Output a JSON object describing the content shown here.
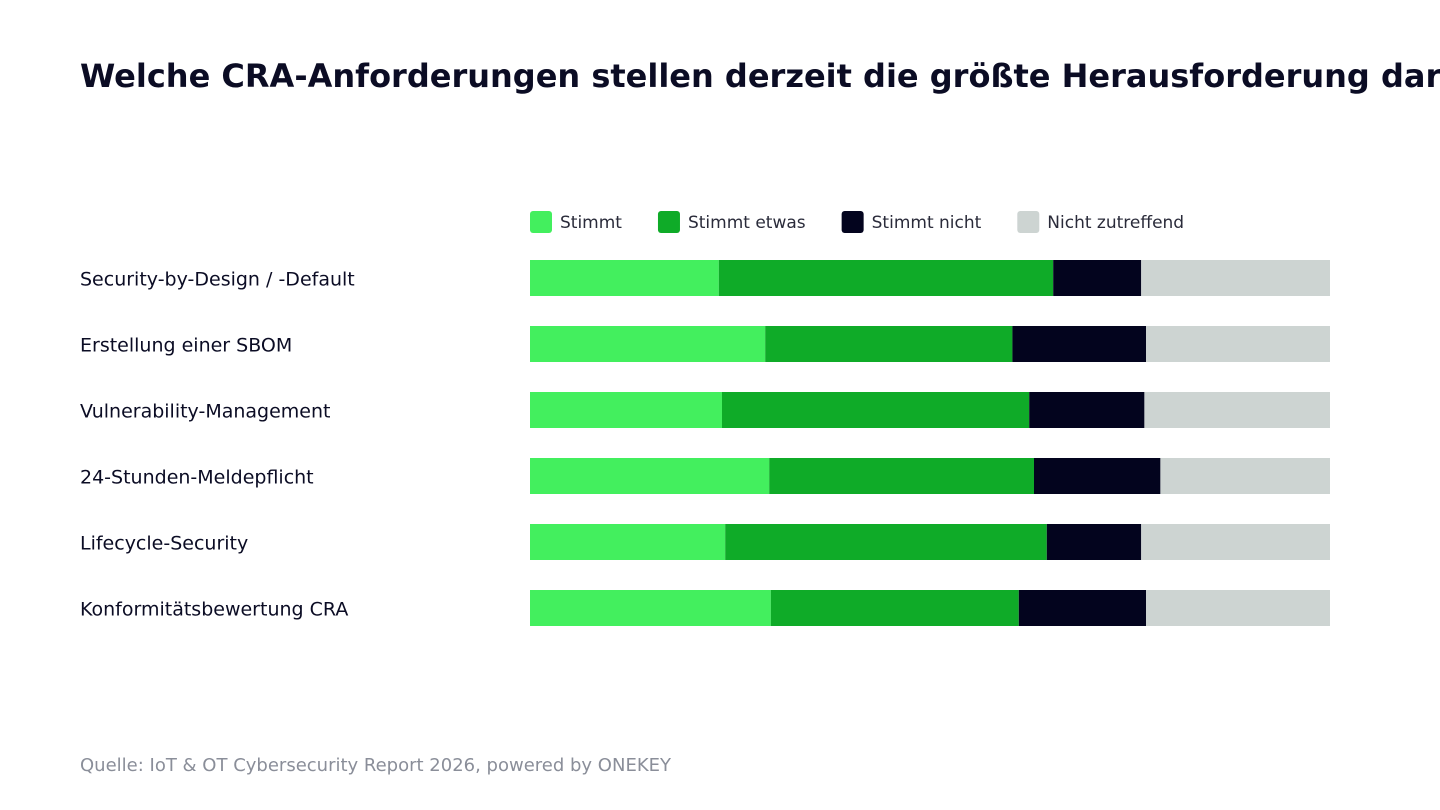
{
  "chart_data": {
    "type": "stacked-bar",
    "title": "Welche CRA-Anforderungen stellen derzeit die größte Herausforderung dar?",
    "source": "Quelle: IoT & OT Cybersecurity Report 2026, powered by ONEKEY",
    "categories": [
      "Security-by-Design / -Default",
      "Erstellung einer SBOM",
      "Vulnerability-Management",
      "24-Stunden-Meldepflicht",
      "Lifecycle-Security",
      "Konformitätsbewertung CRA"
    ],
    "series": [
      {
        "name": "Stimmt",
        "color": "#43ef5e",
        "values": [
          23.6,
          29.4,
          24,
          29.9,
          24.4,
          30.1
        ]
      },
      {
        "name": "Stimmt etwas",
        "color": "#0fab28",
        "values": [
          41.8,
          30.9,
          38.4,
          33.1,
          40.2,
          31
        ]
      },
      {
        "name": "Stimmt nicht",
        "color": "#03041e",
        "values": [
          11,
          16.7,
          14.4,
          15.8,
          11.8,
          15.9
        ]
      },
      {
        "name": "Nicht zutreffend",
        "color": "#cdd4d2",
        "values": [
          23.6,
          23,
          23.2,
          21.2,
          23.6,
          23
        ]
      }
    ]
  }
}
